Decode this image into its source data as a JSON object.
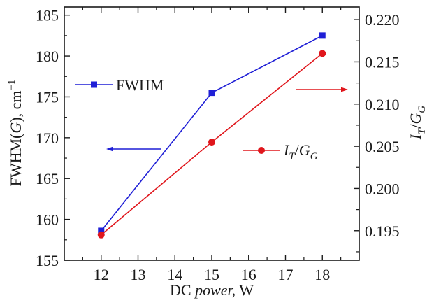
{
  "chart_data": {
    "type": "line",
    "xlabel_main": "DC ",
    "xlabel_italic": "power,",
    "xlabel_unit": " W",
    "ylabel_left": "FWHM(",
    "ylabel_left_italic": "G",
    "ylabel_left_rest": "), cm",
    "ylabel_left_sup": "−1",
    "ylabel_right_I": "I",
    "ylabel_right_T": "T",
    "ylabel_right_slash": "/",
    "ylabel_right_G": "G",
    "x": [
      12,
      15,
      18
    ],
    "xlim": [
      11,
      19
    ],
    "xticks": [
      "12",
      "13",
      "14",
      "15",
      "16",
      "17",
      "18"
    ],
    "ylim_left": [
      155,
      186
    ],
    "yticks_left": [
      "155",
      "160",
      "165",
      "170",
      "175",
      "180",
      "185"
    ],
    "ylim_right": [
      0.1915,
      0.2215
    ],
    "yticks_right": [
      "0.195",
      "0.200",
      "0.205",
      "0.210",
      "0.215",
      "0.220"
    ],
    "series": [
      {
        "name": "FWHM",
        "axis": "left",
        "values": [
          158.6,
          175.5,
          182.5
        ],
        "color": "#1f1fd6",
        "marker": "square"
      },
      {
        "name_I": "I",
        "name_T": "T",
        "name_slash": "/",
        "name_G": "G",
        "axis": "right",
        "values": [
          0.1945,
          0.2055,
          0.216
        ],
        "color": "#e0161c",
        "marker": "circle"
      }
    ],
    "grid": false,
    "legend_placement": "inside, left-top (FWHM) and center-right (IT/IG)"
  }
}
